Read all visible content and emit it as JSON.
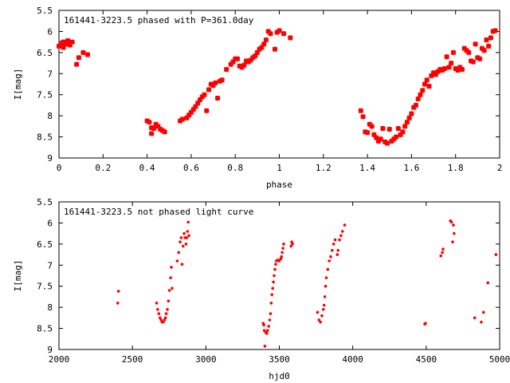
{
  "chart_data": [
    {
      "type": "scatter",
      "title": "161441-3223.5 phased with P=361.0day",
      "xlabel": "phase",
      "ylabel": "I[mag]",
      "xlim": [
        0,
        2
      ],
      "ylim": [
        5.5,
        9
      ],
      "y_inverted": true,
      "x_ticks": [
        "0",
        "0.2",
        "0.4",
        "0.6",
        "0.8",
        "1",
        "1.2",
        "1.4",
        "1.6",
        "1.8",
        "2"
      ],
      "y_ticks": [
        "5.5",
        "6",
        "6.5",
        "7",
        "7.5",
        "8",
        "8.5",
        "9"
      ],
      "marker": "plus-star",
      "color": "#ff0000",
      "series": [
        {
          "points": [
            [
              0.0,
              6.35
            ],
            [
              0.01,
              6.28
            ],
            [
              0.02,
              6.25
            ],
            [
              0.02,
              6.38
            ],
            [
              0.03,
              6.3
            ],
            [
              0.04,
              6.22
            ],
            [
              0.05,
              6.32
            ],
            [
              0.06,
              6.25
            ],
            [
              0.08,
              6.78
            ],
            [
              0.09,
              6.62
            ],
            [
              0.11,
              6.5
            ],
            [
              0.13,
              6.55
            ],
            [
              0.4,
              8.12
            ],
            [
              0.41,
              8.15
            ],
            [
              0.42,
              8.28
            ],
            [
              0.42,
              8.42
            ],
            [
              0.43,
              8.3
            ],
            [
              0.44,
              8.2
            ],
            [
              0.45,
              8.25
            ],
            [
              0.46,
              8.32
            ],
            [
              0.47,
              8.35
            ],
            [
              0.48,
              8.38
            ],
            [
              0.55,
              8.12
            ],
            [
              0.56,
              8.08
            ],
            [
              0.58,
              8.05
            ],
            [
              0.59,
              7.98
            ],
            [
              0.6,
              7.92
            ],
            [
              0.61,
              7.85
            ],
            [
              0.62,
              7.78
            ],
            [
              0.63,
              7.7
            ],
            [
              0.64,
              7.62
            ],
            [
              0.65,
              7.55
            ],
            [
              0.66,
              7.5
            ],
            [
              0.67,
              7.88
            ],
            [
              0.68,
              7.38
            ],
            [
              0.69,
              7.25
            ],
            [
              0.7,
              7.28
            ],
            [
              0.71,
              7.22
            ],
            [
              0.72,
              7.58
            ],
            [
              0.73,
              7.18
            ],
            [
              0.74,
              7.15
            ],
            [
              0.76,
              6.9
            ],
            [
              0.78,
              6.78
            ],
            [
              0.79,
              6.72
            ],
            [
              0.8,
              6.65
            ],
            [
              0.81,
              6.65
            ],
            [
              0.82,
              6.82
            ],
            [
              0.83,
              6.85
            ],
            [
              0.84,
              6.8
            ],
            [
              0.85,
              6.7
            ],
            [
              0.86,
              6.72
            ],
            [
              0.87,
              6.68
            ],
            [
              0.88,
              6.62
            ],
            [
              0.89,
              6.58
            ],
            [
              0.9,
              6.5
            ],
            [
              0.91,
              6.42
            ],
            [
              0.92,
              6.38
            ],
            [
              0.93,
              6.3
            ],
            [
              0.94,
              6.2
            ],
            [
              0.95,
              6.0
            ],
            [
              0.96,
              6.05
            ],
            [
              0.98,
              6.42
            ],
            [
              0.99,
              6.02
            ],
            [
              1.0,
              5.98
            ],
            [
              1.02,
              6.05
            ],
            [
              1.05,
              6.15
            ],
            [
              1.37,
              7.88
            ],
            [
              1.38,
              8.02
            ],
            [
              1.39,
              8.38
            ],
            [
              1.4,
              8.4
            ],
            [
              1.41,
              8.2
            ],
            [
              1.42,
              8.25
            ],
            [
              1.43,
              8.45
            ],
            [
              1.44,
              8.52
            ],
            [
              1.45,
              8.6
            ],
            [
              1.46,
              8.55
            ],
            [
              1.47,
              8.3
            ],
            [
              1.48,
              8.62
            ],
            [
              1.49,
              8.65
            ],
            [
              1.5,
              8.32
            ],
            [
              1.51,
              8.6
            ],
            [
              1.52,
              8.55
            ],
            [
              1.53,
              8.5
            ],
            [
              1.54,
              8.3
            ],
            [
              1.55,
              8.45
            ],
            [
              1.56,
              8.38
            ],
            [
              1.57,
              8.25
            ],
            [
              1.58,
              8.15
            ],
            [
              1.59,
              8.05
            ],
            [
              1.6,
              7.95
            ],
            [
              1.61,
              7.8
            ],
            [
              1.62,
              7.75
            ],
            [
              1.63,
              7.6
            ],
            [
              1.64,
              7.5
            ],
            [
              1.65,
              7.4
            ],
            [
              1.66,
              7.25
            ],
            [
              1.67,
              7.15
            ],
            [
              1.68,
              7.3
            ],
            [
              1.69,
              7.05
            ],
            [
              1.7,
              6.98
            ],
            [
              1.71,
              7.02
            ],
            [
              1.72,
              6.95
            ],
            [
              1.73,
              6.9
            ],
            [
              1.74,
              6.92
            ],
            [
              1.75,
              6.88
            ],
            [
              1.76,
              6.6
            ],
            [
              1.77,
              6.85
            ],
            [
              1.78,
              6.75
            ],
            [
              1.79,
              6.5
            ],
            [
              1.8,
              6.88
            ],
            [
              1.81,
              6.92
            ],
            [
              1.82,
              6.85
            ],
            [
              1.83,
              6.9
            ],
            [
              1.84,
              6.4
            ],
            [
              1.85,
              6.45
            ],
            [
              1.86,
              6.5
            ],
            [
              1.87,
              6.7
            ],
            [
              1.88,
              6.72
            ],
            [
              1.89,
              6.3
            ],
            [
              1.9,
              6.62
            ],
            [
              1.91,
              6.65
            ],
            [
              1.92,
              6.4
            ],
            [
              1.93,
              6.45
            ],
            [
              1.94,
              6.2
            ],
            [
              1.95,
              6.35
            ],
            [
              1.96,
              6.15
            ],
            [
              1.97,
              6.0
            ],
            [
              1.98,
              5.98
            ]
          ]
        }
      ]
    },
    {
      "type": "scatter",
      "title": "161441-3223.5 not phased light curve",
      "xlabel": "hjd0",
      "ylabel": "I[mag]",
      "xlim": [
        2000,
        5000
      ],
      "ylim": [
        5.5,
        9
      ],
      "y_inverted": true,
      "x_ticks": [
        "2000",
        "2500",
        "3000",
        "3500",
        "4000",
        "4500",
        "5000"
      ],
      "y_ticks": [
        "5.5",
        "6",
        "6.5",
        "7",
        "7.5",
        "8",
        "8.5",
        "9"
      ],
      "marker": "dot",
      "color": "#ff0000",
      "series": [
        {
          "points": [
            [
              2400,
              7.9
            ],
            [
              2405,
              7.62
            ],
            [
              2665,
              7.9
            ],
            [
              2672,
              8.05
            ],
            [
              2680,
              8.15
            ],
            [
              2688,
              8.25
            ],
            [
              2695,
              8.3
            ],
            [
              2702,
              8.35
            ],
            [
              2710,
              8.35
            ],
            [
              2718,
              8.3
            ],
            [
              2725,
              8.25
            ],
            [
              2730,
              8.15
            ],
            [
              2738,
              8.05
            ],
            [
              2745,
              7.85
            ],
            [
              2752,
              7.6
            ],
            [
              2760,
              7.3
            ],
            [
              2765,
              7.05
            ],
            [
              2770,
              7.55
            ],
            [
              2805,
              6.9
            ],
            [
              2815,
              6.7
            ],
            [
              2825,
              6.45
            ],
            [
              2832,
              6.35
            ],
            [
              2838,
              6.98
            ],
            [
              2845,
              6.55
            ],
            [
              2852,
              6.25
            ],
            [
              2858,
              6.35
            ],
            [
              2865,
              6.5
            ],
            [
              2870,
              6.35
            ],
            [
              2875,
              6.2
            ],
            [
              2880,
              5.98
            ],
            [
              2885,
              6.3
            ],
            [
              3390,
              8.38
            ],
            [
              3395,
              8.42
            ],
            [
              3398,
              8.55
            ],
            [
              3402,
              8.92
            ],
            [
              3408,
              8.6
            ],
            [
              3415,
              8.62
            ],
            [
              3420,
              8.55
            ],
            [
              3428,
              8.45
            ],
            [
              3435,
              8.3
            ],
            [
              3440,
              8.15
            ],
            [
              3445,
              7.9
            ],
            [
              3450,
              7.7
            ],
            [
              3455,
              7.55
            ],
            [
              3460,
              7.4
            ],
            [
              3465,
              7.25
            ],
            [
              3470,
              7.1
            ],
            [
              3475,
              6.98
            ],
            [
              3480,
              6.9
            ],
            [
              3490,
              6.88
            ],
            [
              3500,
              6.9
            ],
            [
              3510,
              6.85
            ],
            [
              3515,
              6.8
            ],
            [
              3520,
              6.7
            ],
            [
              3525,
              6.6
            ],
            [
              3530,
              6.5
            ],
            [
              3580,
              6.55
            ],
            [
              3585,
              6.45
            ],
            [
              3590,
              6.5
            ],
            [
              3760,
              8.12
            ],
            [
              3770,
              8.3
            ],
            [
              3780,
              8.35
            ],
            [
              3790,
              8.2
            ],
            [
              3800,
              8.05
            ],
            [
              3805,
              7.95
            ],
            [
              3810,
              7.75
            ],
            [
              3815,
              7.5
            ],
            [
              3820,
              7.3
            ],
            [
              3830,
              7.1
            ],
            [
              3840,
              6.9
            ],
            [
              3850,
              6.8
            ],
            [
              3860,
              6.65
            ],
            [
              3870,
              6.5
            ],
            [
              3880,
              6.4
            ],
            [
              3895,
              6.75
            ],
            [
              3900,
              6.65
            ],
            [
              3910,
              6.4
            ],
            [
              3920,
              6.3
            ],
            [
              3930,
              6.2
            ],
            [
              3945,
              6.05
            ],
            [
              4490,
              8.4
            ],
            [
              4495,
              8.38
            ],
            [
              4600,
              6.78
            ],
            [
              4610,
              6.7
            ],
            [
              4615,
              6.62
            ],
            [
              4665,
              5.95
            ],
            [
              4672,
              5.98
            ],
            [
              4680,
              6.45
            ],
            [
              4685,
              6.05
            ],
            [
              4690,
              6.25
            ],
            [
              4830,
              8.25
            ],
            [
              4875,
              8.35
            ],
            [
              4890,
              8.12
            ],
            [
              4920,
              7.42
            ],
            [
              4975,
              6.75
            ]
          ]
        }
      ]
    }
  ]
}
